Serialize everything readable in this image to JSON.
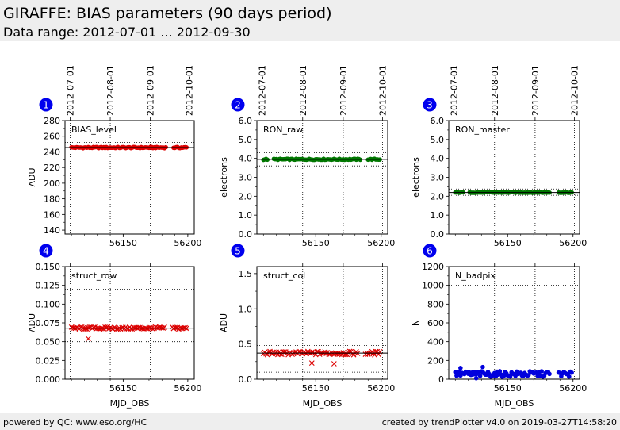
{
  "header": {
    "title": "GIRAFFE: BIAS parameters (90 days period)",
    "subtitle": "Data range: 2012-07-01 ... 2012-09-30"
  },
  "footer": {
    "left": "powered by QC: www.eso.org/HC",
    "right": "created by trendPlotter v4.0 on 2019-03-27T14:58:20"
  },
  "colors": {
    "red": "#dd0000",
    "green": "#007700",
    "blue": "#0000dd",
    "badge": "#0000ee"
  },
  "chart_data": [
    {
      "type": "scatter",
      "number": "1",
      "label": "BIAS_level",
      "ylabel": "ADU",
      "xlabel": "",
      "xlim": [
        56105,
        56205
      ],
      "ylim": [
        135,
        280
      ],
      "yticks": [
        140,
        160,
        180,
        200,
        220,
        240,
        260,
        280
      ],
      "ytick_labels": [
        "140",
        "160",
        "180",
        "200",
        "220",
        "240",
        "260",
        "280"
      ],
      "xticks": [
        56150,
        56200
      ],
      "xtick_labels": [
        "56150",
        "56200"
      ],
      "show_bottom_labels": true,
      "date_ticks": [
        56109,
        56140,
        56171,
        56201
      ],
      "date_tick_labels": [
        "2012-07-01",
        "2012-08-01",
        "2012-09-01",
        "2012-10-01"
      ],
      "ref_line": 245.5,
      "band": [
        240,
        252
      ],
      "color": "#dd0000",
      "marker": "dot",
      "points": {
        "x_start": 56110,
        "x_end": 56199,
        "base": 245.5,
        "amplitude": 0.8,
        "gaps": [
          [
            56184,
            56188
          ]
        ],
        "outliers": []
      }
    },
    {
      "type": "scatter",
      "number": "2",
      "label": "RON_raw",
      "ylabel": "electrons",
      "xlabel": "",
      "xlim": [
        56105,
        56205
      ],
      "ylim": [
        0,
        6
      ],
      "yticks": [
        0,
        1,
        2,
        3,
        4,
        5,
        6
      ],
      "ytick_labels": [
        "0.0",
        "1.0",
        "2.0",
        "3.0",
        "4.0",
        "5.0",
        "6.0"
      ],
      "xticks": [
        56150,
        56200
      ],
      "xtick_labels": [
        "56150",
        "56200"
      ],
      "show_bottom_labels": true,
      "date_ticks": [
        56109,
        56140,
        56171,
        56201
      ],
      "date_tick_labels": [
        "2012-07-01",
        "2012-08-01",
        "2012-09-01",
        "2012-10-01"
      ],
      "ref_line": 3.95,
      "band": [
        3.6,
        4.3
      ],
      "color": "#007700",
      "marker": "dot",
      "points": {
        "x_start": 56110,
        "x_end": 56199,
        "base": 3.95,
        "amplitude": 0.03,
        "gaps": [
          [
            56114,
            56117
          ],
          [
            56185,
            56189
          ]
        ],
        "outliers": []
      }
    },
    {
      "type": "scatter",
      "number": "3",
      "label": "RON_master",
      "ylabel": "electrons",
      "xlabel": "",
      "xlim": [
        56105,
        56205
      ],
      "ylim": [
        0,
        6
      ],
      "yticks": [
        0,
        1,
        2,
        3,
        4,
        5,
        6
      ],
      "ytick_labels": [
        "0.0",
        "1.0",
        "2.0",
        "3.0",
        "4.0",
        "5.0",
        "6.0"
      ],
      "xticks": [
        56150,
        56200
      ],
      "xtick_labels": [
        "56150",
        "56200"
      ],
      "show_bottom_labels": true,
      "date_ticks": [
        56109,
        56140,
        56171,
        56201
      ],
      "date_tick_labels": [
        "2012-07-01",
        "2012-08-01",
        "2012-09-01",
        "2012-10-01"
      ],
      "ref_line": 2.2,
      "band": [
        2.05,
        2.38
      ],
      "color": "#007700",
      "marker": "dot",
      "points": {
        "x_start": 56110,
        "x_end": 56199,
        "base": 2.2,
        "amplitude": 0.02,
        "gaps": [
          [
            56117,
            56120
          ],
          [
            56183,
            56188
          ]
        ],
        "outliers": []
      }
    },
    {
      "type": "scatter",
      "number": "4",
      "label": "struct_row",
      "ylabel": "ADU",
      "xlabel": "MJD_OBS",
      "xlim": [
        56105,
        56205
      ],
      "ylim": [
        0,
        0.15
      ],
      "yticks": [
        0,
        0.025,
        0.05,
        0.075,
        0.1,
        0.125,
        0.15
      ],
      "ytick_labels": [
        "0.000",
        "0.025",
        "0.050",
        "0.075",
        "0.100",
        "0.125",
        "0.150"
      ],
      "xticks": [
        56150,
        56200
      ],
      "xtick_labels": [
        "56150",
        "56200"
      ],
      "show_bottom_labels": true,
      "date_ticks": [
        56109,
        56140,
        56171,
        56201
      ],
      "date_tick_labels": [],
      "ref_line": 0.068,
      "band": [
        0.05,
        0.12
      ],
      "color": "#dd0000",
      "marker": "x",
      "points": {
        "x_start": 56110,
        "x_end": 56199,
        "base": 0.068,
        "amplitude": 0.0015,
        "gaps": [
          [
            56183,
            56187
          ]
        ],
        "outliers": [
          [
            56123,
            0.054
          ]
        ]
      }
    },
    {
      "type": "scatter",
      "number": "5",
      "label": "struct_col",
      "ylabel": "ADU",
      "xlabel": "MJD_OBS",
      "xlim": [
        56105,
        56205
      ],
      "ylim": [
        0,
        1.6
      ],
      "yticks": [
        0,
        0.5,
        1.0,
        1.5
      ],
      "ytick_labels": [
        "0.0",
        "0.5",
        "1.0",
        "1.5"
      ],
      "xticks": [
        56150,
        56200
      ],
      "xtick_labels": [
        "56150",
        "56200"
      ],
      "show_bottom_labels": true,
      "date_ticks": [
        56109,
        56140,
        56171,
        56201
      ],
      "date_tick_labels": [],
      "ref_line": 0.37,
      "band": [
        0.1,
        0.48
      ],
      "color": "#dd0000",
      "marker": "x",
      "points": {
        "x_start": 56110,
        "x_end": 56199,
        "base": 0.37,
        "amplitude": 0.025,
        "gaps": [
          [
            56183,
            56187
          ]
        ],
        "outliers": [
          [
            56147,
            0.23
          ],
          [
            56164,
            0.22
          ]
        ]
      }
    },
    {
      "type": "scatter",
      "number": "6",
      "label": "N_badpix",
      "ylabel": "N",
      "xlabel": "MJD_OBS",
      "xlim": [
        56105,
        56205
      ],
      "ylim": [
        0,
        1200
      ],
      "yticks": [
        0,
        200,
        400,
        600,
        800,
        1000,
        1200
      ],
      "ytick_labels": [
        "0",
        "200",
        "400",
        "600",
        "800",
        "1000",
        "1200"
      ],
      "xticks": [
        56150,
        56200
      ],
      "xtick_labels": [
        "56150",
        "56200"
      ],
      "show_bottom_labels": true,
      "date_ticks": [
        56109,
        56140,
        56171,
        56201
      ],
      "date_tick_labels": [],
      "ref_line": 55,
      "band": [
        0,
        1000
      ],
      "color": "#0000dd",
      "marker": "dot",
      "points": {
        "x_start": 56110,
        "x_end": 56199,
        "base": 55,
        "amplitude": 30,
        "gaps": [
          [
            56183,
            56188
          ]
        ],
        "outliers": [
          [
            56114,
            120
          ],
          [
            56131,
            130
          ],
          [
            56126,
            10
          ]
        ]
      }
    }
  ]
}
